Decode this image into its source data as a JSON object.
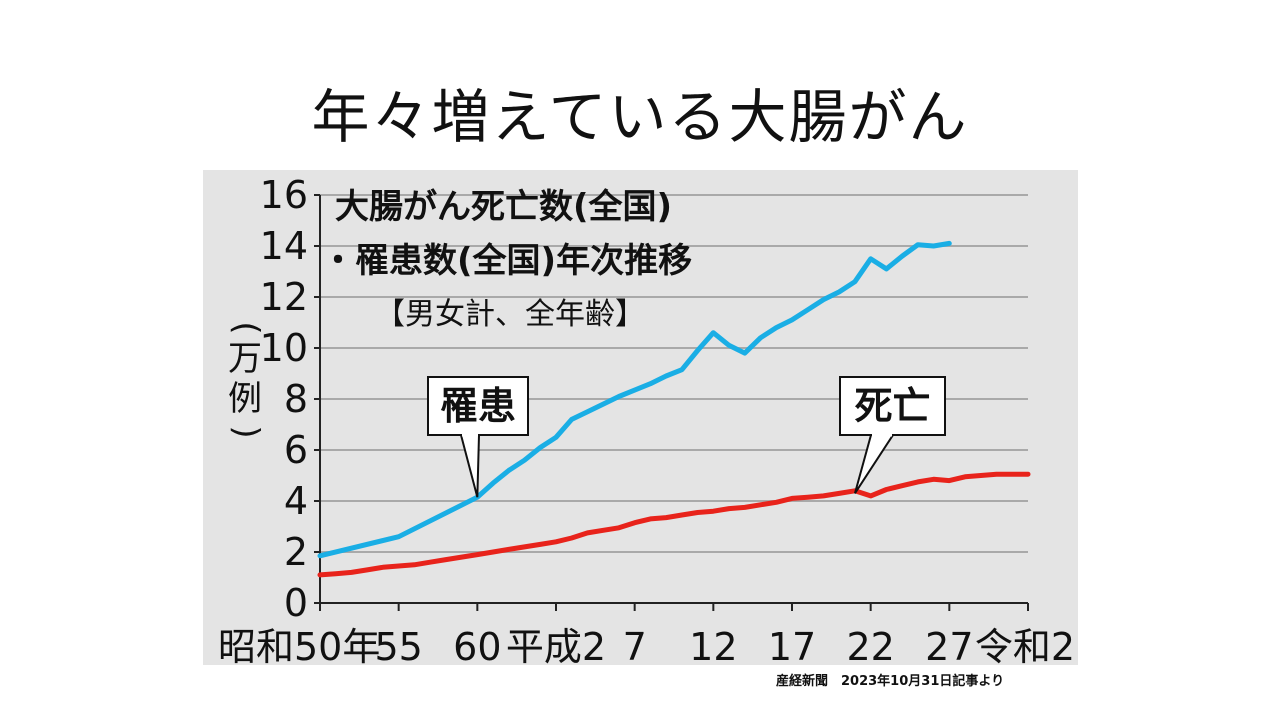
{
  "slide": {
    "title": "年々増えている大腸がん",
    "source": "産経新聞　2023年10月31日記事より"
  },
  "chart_data": {
    "type": "line",
    "title_line1": "大腸がん死亡数(全国)",
    "title_line2": "・罹患数(全国)年次推移",
    "subtitle": "【男女計、全年齢】",
    "ylabel_chars": [
      "(",
      "万",
      "例",
      ")"
    ],
    "ylim": [
      0,
      16
    ],
    "yticks": [
      0,
      2,
      4,
      6,
      8,
      10,
      12,
      14,
      16
    ],
    "xlim": [
      1975,
      2020
    ],
    "xticks": [
      {
        "year": 1975,
        "label": "昭和50年"
      },
      {
        "year": 1980,
        "label": "55"
      },
      {
        "year": 1985,
        "label": "60"
      },
      {
        "year": 1990,
        "label": "平成2"
      },
      {
        "year": 1995,
        "label": "7"
      },
      {
        "year": 2000,
        "label": "12"
      },
      {
        "year": 2005,
        "label": "17"
      },
      {
        "year": 2010,
        "label": "22"
      },
      {
        "year": 2015,
        "label": "27"
      },
      {
        "year": 2020,
        "label": "令和2"
      }
    ],
    "grid": true,
    "series": [
      {
        "name": "罹患",
        "color": "#1aaee5",
        "x": [
          1975,
          1980,
          1985,
          1986,
          1987,
          1988,
          1989,
          1990,
          1991,
          1992,
          1993,
          1994,
          1995,
          1996,
          1997,
          1998,
          1999,
          2000,
          2001,
          2002,
          2003,
          2004,
          2005,
          2006,
          2007,
          2008,
          2009,
          2010,
          2011,
          2012,
          2013,
          2014,
          2015
        ],
        "values": [
          1.85,
          2.6,
          4.15,
          4.7,
          5.2,
          5.6,
          6.1,
          6.5,
          7.2,
          7.5,
          7.8,
          8.1,
          8.35,
          8.6,
          8.9,
          9.15,
          9.9,
          10.6,
          10.1,
          9.8,
          10.4,
          10.8,
          11.1,
          11.5,
          11.9,
          12.2,
          12.6,
          13.5,
          13.1,
          13.6,
          14.05,
          14.0,
          14.1
        ]
      },
      {
        "name": "死亡",
        "color": "#e8231b",
        "x": [
          1975,
          1976,
          1977,
          1978,
          1979,
          1980,
          1981,
          1982,
          1983,
          1984,
          1985,
          1986,
          1987,
          1988,
          1989,
          1990,
          1991,
          1992,
          1993,
          1994,
          1995,
          1996,
          1997,
          1998,
          1999,
          2000,
          2001,
          2002,
          2003,
          2004,
          2005,
          2006,
          2007,
          2008,
          2009,
          2010,
          2011,
          2012,
          2013,
          2014,
          2015,
          2016,
          2017,
          2018,
          2019,
          2020
        ],
        "values": [
          1.1,
          1.15,
          1.2,
          1.3,
          1.4,
          1.45,
          1.5,
          1.6,
          1.7,
          1.8,
          1.9,
          2.0,
          2.1,
          2.2,
          2.3,
          2.4,
          2.55,
          2.75,
          2.85,
          2.95,
          3.15,
          3.3,
          3.35,
          3.45,
          3.55,
          3.6,
          3.7,
          3.75,
          3.85,
          3.95,
          4.1,
          4.15,
          4.2,
          4.3,
          4.4,
          4.2,
          4.45,
          4.6,
          4.75,
          4.85,
          4.8,
          4.95,
          5.0,
          5.05,
          5.05,
          5.05
        ]
      }
    ],
    "callouts": [
      {
        "label": "罹患",
        "series": 0
      },
      {
        "label": "死亡",
        "series": 1
      }
    ]
  }
}
